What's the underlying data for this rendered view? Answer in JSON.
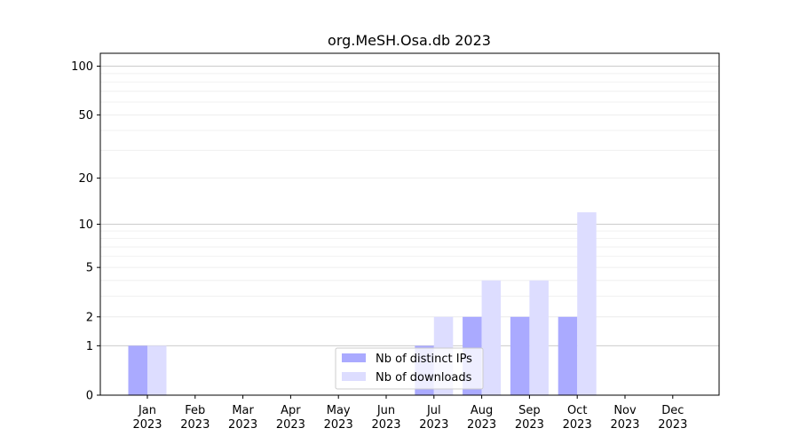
{
  "chart_data": {
    "type": "bar",
    "title": "org.MeSH.Osa.db 2023",
    "xlabel": "",
    "ylabel": "",
    "scale": "log1p",
    "ylim": [
      0,
      120
    ],
    "yticks": [
      0,
      1,
      2,
      5,
      10,
      20,
      50,
      100
    ],
    "categories": [
      [
        "Jan",
        "2023"
      ],
      [
        "Feb",
        "2023"
      ],
      [
        "Mar",
        "2023"
      ],
      [
        "Apr",
        "2023"
      ],
      [
        "May",
        "2023"
      ],
      [
        "Jun",
        "2023"
      ],
      [
        "Jul",
        "2023"
      ],
      [
        "Aug",
        "2023"
      ],
      [
        "Sep",
        "2023"
      ],
      [
        "Oct",
        "2023"
      ],
      [
        "Nov",
        "2023"
      ],
      [
        "Dec",
        "2023"
      ]
    ],
    "series": [
      {
        "name": "Nb of distinct IPs",
        "color": "#aaaaff",
        "values": [
          1,
          0,
          0,
          0,
          0,
          0,
          1,
          2,
          2,
          2,
          0,
          0
        ]
      },
      {
        "name": "Nb of downloads",
        "color": "#ddddff",
        "values": [
          1,
          0,
          0,
          0,
          0,
          0,
          2,
          4,
          4,
          12,
          0,
          0
        ]
      }
    ],
    "grid": true,
    "legend": "lower-center"
  }
}
